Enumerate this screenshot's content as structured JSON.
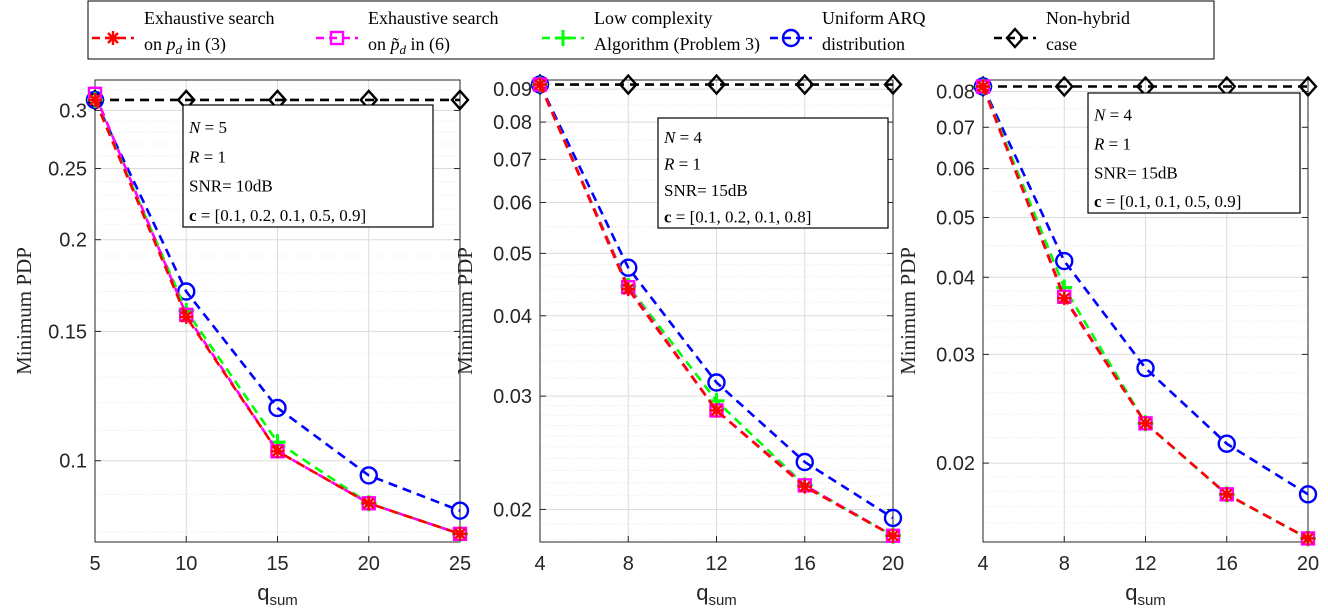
{
  "legend": [
    {
      "key": "exh_pd",
      "line1": "Exhaustive search",
      "line2a": "on ",
      "sym": "p",
      "sub": "d",
      "line2b": " in (3)",
      "color": "#ff0000",
      "marker": "asterisk"
    },
    {
      "key": "exh_tpd",
      "line1": "Exhaustive search",
      "line2a": "on ",
      "sym": "p̃",
      "sub": "d",
      "line2b": " in (6)",
      "color": "#ff00ff",
      "marker": "square"
    },
    {
      "key": "lowc",
      "line1": "Low complexity",
      "line2a": "Algorithm (Problem 3)",
      "color": "#00ff00",
      "marker": "plus"
    },
    {
      "key": "uni",
      "line1": "Uniform ARQ",
      "line2a": "distribution",
      "color": "#0000ff",
      "marker": "circle"
    },
    {
      "key": "nonh",
      "line1": "Non-hybrid",
      "line2a": "case",
      "color": "#000000",
      "marker": "diamond"
    }
  ],
  "chart_data": [
    {
      "type": "line",
      "xlabel": "q",
      "xlabel_sub": "sum",
      "ylabel": "Minimum PDP",
      "yscale": "log",
      "xlim": [
        5,
        25
      ],
      "ylim": [
        0.0775,
        0.33
      ],
      "x": [
        5,
        10,
        15,
        20,
        25
      ],
      "xticks": [
        {
          "v": 5,
          "label": "5"
        },
        {
          "v": 10,
          "label": "10"
        },
        {
          "v": 15,
          "label": "15"
        },
        {
          "v": 20,
          "label": "20"
        },
        {
          "v": 25,
          "label": "25"
        }
      ],
      "yticks": [
        {
          "v": 0.1,
          "label": "0.1"
        },
        {
          "v": 0.15,
          "label": "0.15"
        },
        {
          "v": 0.2,
          "label": "0.2"
        },
        {
          "v": 0.25,
          "label": "0.25"
        },
        {
          "v": 0.3,
          "label": "0.3"
        }
      ],
      "yminor": [
        0.08,
        0.09,
        0.11,
        0.12,
        0.13,
        0.14,
        0.16,
        0.17,
        0.18,
        0.19,
        0.21,
        0.22,
        0.23,
        0.24,
        0.26,
        0.27,
        0.28,
        0.29,
        0.31,
        0.32
      ],
      "annotation": {
        "N": "5",
        "R": "1",
        "SNR": "10dB",
        "c": "[0.1, 0.2, 0.1, 0.5, 0.9]"
      },
      "series": [
        {
          "key": "exh_pd",
          "values": [
            0.31,
            0.157,
            0.103,
            0.0875,
            0.0795
          ]
        },
        {
          "key": "exh_tpd",
          "values": [
            0.316,
            0.158,
            0.103,
            0.0875,
            0.0795
          ]
        },
        {
          "key": "lowc",
          "values": [
            0.31,
            0.16,
            0.106,
            0.0875,
            0.0795
          ]
        },
        {
          "key": "uni",
          "values": [
            0.31,
            0.17,
            0.118,
            0.0955,
            0.0855
          ]
        },
        {
          "key": "nonh",
          "values": [
            0.31,
            0.31,
            0.31,
            0.31,
            0.31
          ]
        }
      ]
    },
    {
      "type": "line",
      "xlabel": "q",
      "xlabel_sub": "sum",
      "ylabel": "Minimum PDP",
      "yscale": "log",
      "xlim": [
        4,
        20
      ],
      "ylim": [
        0.0178,
        0.093
      ],
      "x": [
        4,
        8,
        12,
        16,
        20
      ],
      "xticks": [
        {
          "v": 4,
          "label": "4"
        },
        {
          "v": 8,
          "label": "8"
        },
        {
          "v": 12,
          "label": "12"
        },
        {
          "v": 16,
          "label": "16"
        },
        {
          "v": 20,
          "label": "20"
        }
      ],
      "yticks": [
        {
          "v": 0.02,
          "label": "0.02"
        },
        {
          "v": 0.03,
          "label": "0.03"
        },
        {
          "v": 0.04,
          "label": "0.04"
        },
        {
          "v": 0.05,
          "label": "0.05"
        },
        {
          "v": 0.06,
          "label": "0.06"
        },
        {
          "v": 0.07,
          "label": "0.07"
        },
        {
          "v": 0.08,
          "label": "0.08"
        },
        {
          "v": 0.09,
          "label": "0.09"
        }
      ],
      "yminor": [
        0.018,
        0.019,
        0.021,
        0.022,
        0.023,
        0.024,
        0.025,
        0.026,
        0.027,
        0.028,
        0.029,
        0.032,
        0.034,
        0.036,
        0.038,
        0.042,
        0.044,
        0.046,
        0.048,
        0.055,
        0.065,
        0.075,
        0.085
      ],
      "annotation": {
        "N": "4",
        "R": "1",
        "SNR": "15dB",
        "c": "[0.1, 0.2, 0.1, 0.8]"
      },
      "series": [
        {
          "key": "exh_pd",
          "values": [
            0.0915,
            0.044,
            0.0285,
            0.0217,
            0.0182
          ]
        },
        {
          "key": "exh_tpd",
          "values": [
            0.0915,
            0.0443,
            0.0285,
            0.0218,
            0.0182
          ]
        },
        {
          "key": "lowc",
          "values": [
            0.0915,
            0.0445,
            0.0295,
            0.0218,
            0.0182
          ]
        },
        {
          "key": "uni",
          "values": [
            0.0915,
            0.0475,
            0.0315,
            0.0237,
            0.0194
          ]
        },
        {
          "key": "nonh",
          "values": [
            0.0915,
            0.0915,
            0.0915,
            0.0915,
            0.0915
          ]
        }
      ]
    },
    {
      "type": "line",
      "xlabel": "q",
      "xlabel_sub": "sum",
      "ylabel": "Minimum PDP",
      "yscale": "log",
      "xlim": [
        4,
        20
      ],
      "ylim": [
        0.0149,
        0.0835
      ],
      "x": [
        4,
        8,
        12,
        16,
        20
      ],
      "xticks": [
        {
          "v": 4,
          "label": "4"
        },
        {
          "v": 8,
          "label": "8"
        },
        {
          "v": 12,
          "label": "12"
        },
        {
          "v": 16,
          "label": "16"
        },
        {
          "v": 20,
          "label": "20"
        }
      ],
      "yticks": [
        {
          "v": 0.02,
          "label": "0.02"
        },
        {
          "v": 0.03,
          "label": "0.03"
        },
        {
          "v": 0.04,
          "label": "0.04"
        },
        {
          "v": 0.05,
          "label": "0.05"
        },
        {
          "v": 0.06,
          "label": "0.06"
        },
        {
          "v": 0.07,
          "label": "0.07"
        },
        {
          "v": 0.08,
          "label": "0.08"
        }
      ],
      "yminor": [
        0.015,
        0.016,
        0.017,
        0.018,
        0.019,
        0.022,
        0.024,
        0.026,
        0.028,
        0.032,
        0.034,
        0.036,
        0.038,
        0.045,
        0.055,
        0.065,
        0.075
      ],
      "annotation": {
        "N": "4",
        "R": "1",
        "SNR": "15dB",
        "c": "[0.1, 0.1, 0.5, 0.9]"
      },
      "series": [
        {
          "key": "exh_pd",
          "values": [
            0.0815,
            0.037,
            0.0232,
            0.0178,
            0.0151
          ]
        },
        {
          "key": "exh_tpd",
          "values": [
            0.0815,
            0.0372,
            0.0232,
            0.0178,
            0.0151
          ]
        },
        {
          "key": "lowc",
          "values": [
            0.0815,
            0.0385,
            0.0232,
            0.0178,
            0.0151
          ]
        },
        {
          "key": "uni",
          "values": [
            0.0815,
            0.0425,
            0.0285,
            0.0215,
            0.0178
          ]
        },
        {
          "key": "nonh",
          "values": [
            0.0815,
            0.0815,
            0.0815,
            0.0815,
            0.0815
          ]
        }
      ]
    }
  ]
}
